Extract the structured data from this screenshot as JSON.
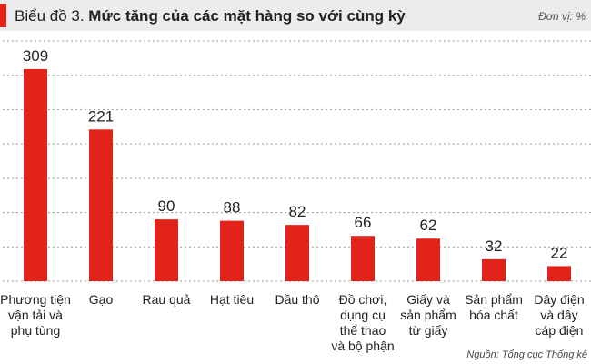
{
  "chart_data": {
    "type": "bar",
    "title_prefix": "Biểu đồ 3.",
    "title": "Mức tăng của các mặt hàng so với cùng kỳ",
    "unit": "Đơn vị: %",
    "source": "Nguồn: Tổng cục Thống kê",
    "categories": [
      "Phương tiện\nvận tải và\nphụ tùng",
      "Gạo",
      "Rau quả",
      "Hạt tiêu",
      "Dầu thô",
      "Đồ chơi,\ndụng cụ\nthể thao\nvà bộ phận",
      "Giấy và\nsản phẩm\ntừ giấy",
      "Sản phẩm\nhóa chất",
      "Dây điện\nvà dây\ncáp điện"
    ],
    "values": [
      309,
      221,
      90,
      88,
      82,
      66,
      62,
      32,
      22
    ],
    "color": "#e2231a",
    "ylim": [
      0,
      350
    ],
    "yticks": [
      0,
      50,
      100,
      150,
      200,
      250,
      300,
      350
    ],
    "grid": true
  }
}
